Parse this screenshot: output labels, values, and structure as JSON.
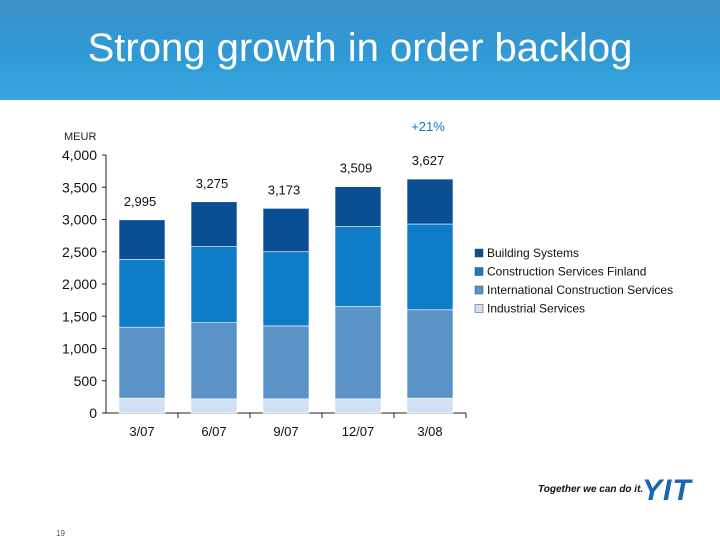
{
  "slide": {
    "title": "Strong growth in order backlog",
    "page_number": "19"
  },
  "footer": {
    "slogan": "Together we can do it.",
    "logo": "YIT"
  },
  "chart_data": {
    "type": "bar",
    "stacked": true,
    "ylabel": "MEUR",
    "ylim": [
      0,
      4000
    ],
    "yticks": [
      0,
      500,
      1000,
      1500,
      2000,
      2500,
      3000,
      3500,
      4000
    ],
    "ytick_labels": [
      "0",
      "500",
      "1,000",
      "1,500",
      "2,000",
      "2,500",
      "3,000",
      "3,500",
      "4,000"
    ],
    "categories": [
      "3/07",
      "6/07",
      "9/07",
      "12/07",
      "3/08"
    ],
    "totals": [
      2995,
      3275,
      3173,
      3509,
      3627
    ],
    "total_labels": [
      "2,995",
      "3,275",
      "3,173",
      "3,509",
      "3,627"
    ],
    "growth_annotation": "+21%",
    "legend_position": "right",
    "series": [
      {
        "name": "Industrial Services",
        "color": "#cfe1f3",
        "values": [
          230,
          220,
          220,
          220,
          230
        ]
      },
      {
        "name": "International Construction Services",
        "color": "#5b93c8",
        "values": [
          1100,
          1180,
          1130,
          1430,
          1370
        ]
      },
      {
        "name": "Construction Services Finland",
        "color": "#0f7cc8",
        "values": [
          1050,
          1180,
          1150,
          1240,
          1330
        ]
      },
      {
        "name": "Building Systems",
        "color": "#0a4f94",
        "values": [
          615,
          695,
          673,
          619,
          697
        ]
      }
    ]
  }
}
